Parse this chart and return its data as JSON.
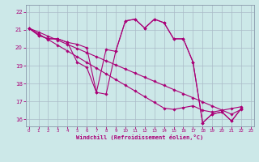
{
  "background_color": "#cce8e8",
  "line_color": "#aa0077",
  "grid_color": "#aabbc8",
  "xlim": [
    -0.3,
    23.3
  ],
  "ylim": [
    15.6,
    22.4
  ],
  "xticks": [
    0,
    1,
    2,
    3,
    4,
    5,
    6,
    7,
    8,
    9,
    10,
    11,
    12,
    13,
    14,
    15,
    16,
    17,
    18,
    19,
    20,
    21,
    22,
    23
  ],
  "yticks": [
    16,
    17,
    18,
    19,
    20,
    21,
    22
  ],
  "xlabel": "Windchill (Refroidissement éolien,°C)",
  "line1_x": [
    0,
    1,
    2,
    3,
    4,
    5,
    6,
    7,
    8,
    9,
    10,
    11,
    12,
    13,
    14,
    15,
    16,
    17,
    18,
    19,
    20,
    21,
    22
  ],
  "line1_y": [
    21.1,
    20.7,
    20.5,
    20.5,
    20.3,
    20.2,
    20.0,
    17.5,
    19.9,
    19.8,
    21.5,
    21.6,
    21.1,
    21.6,
    21.4,
    20.5,
    20.5,
    19.2,
    15.8,
    16.3,
    16.4,
    15.9,
    16.6
  ],
  "line2_x": [
    0,
    1,
    2,
    3,
    4,
    5,
    6,
    7,
    8,
    9,
    10,
    11,
    12,
    13,
    14,
    15,
    16,
    17,
    18,
    19,
    20,
    21,
    22
  ],
  "line2_y": [
    21.1,
    20.88,
    20.65,
    20.42,
    20.19,
    19.96,
    19.73,
    19.5,
    19.27,
    19.04,
    18.81,
    18.58,
    18.35,
    18.12,
    17.89,
    17.66,
    17.43,
    17.2,
    16.97,
    16.74,
    16.51,
    16.28,
    16.55
  ],
  "line3_x": [
    0,
    1,
    2,
    3,
    4,
    5,
    6,
    7,
    8,
    9,
    10,
    11,
    12,
    13,
    14,
    15,
    16,
    17,
    18,
    19,
    20,
    21,
    22
  ],
  "line3_y": [
    21.1,
    20.78,
    20.46,
    20.14,
    19.82,
    19.5,
    19.18,
    18.86,
    18.54,
    18.22,
    17.9,
    17.58,
    17.26,
    16.94,
    16.62,
    16.55,
    16.65,
    16.75,
    16.5,
    16.4,
    16.5,
    16.6,
    16.7
  ],
  "line4_x": [
    0,
    1,
    2,
    3,
    4,
    5,
    6,
    7,
    8,
    9,
    10,
    11,
    12,
    13,
    14,
    15,
    16,
    17,
    18,
    19,
    20,
    21,
    22
  ],
  "line4_y": [
    21.1,
    20.7,
    20.5,
    20.5,
    20.3,
    19.2,
    18.9,
    17.5,
    17.4,
    19.8,
    21.5,
    21.6,
    21.1,
    21.6,
    21.4,
    20.5,
    20.5,
    19.2,
    15.8,
    16.3,
    16.4,
    15.9,
    16.6
  ]
}
